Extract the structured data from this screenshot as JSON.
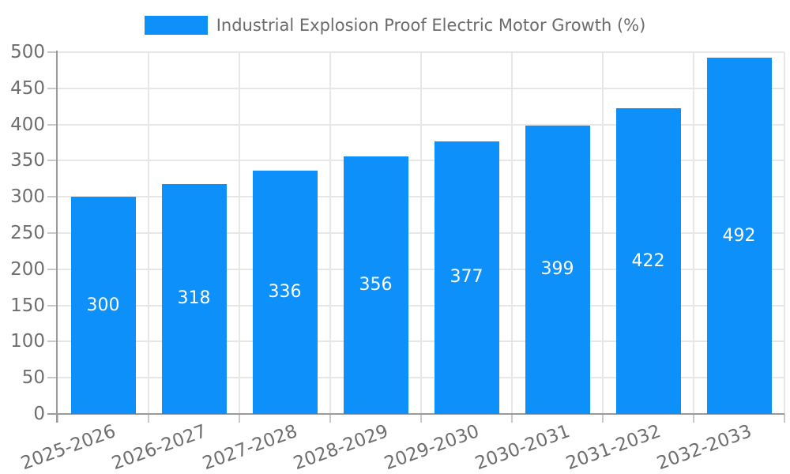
{
  "legend": {
    "label": "Industrial Explosion Proof Electric Motor Growth (%)"
  },
  "colors": {
    "bar": "#0e90fa",
    "bar_value_text": "#ffffff",
    "grid": "#e7e7e7",
    "axis": "#9a9a9a",
    "tick_text": "#6e6e6e",
    "legend_text": "#6b6b6b"
  },
  "chart_data": {
    "type": "bar",
    "title": "Industrial Explosion Proof Electric Motor Growth (%)",
    "categories": [
      "2025-2026",
      "2026-2027",
      "2027-2028",
      "2028-2029",
      "2029-2030",
      "2030-2031",
      "2031-2032",
      "2032-2033"
    ],
    "values": [
      300,
      318,
      336,
      356,
      377,
      399,
      422,
      492
    ],
    "xlabel": "",
    "ylabel": "",
    "ylim": [
      0,
      500
    ],
    "ytick_step": 50,
    "yticks": [
      0,
      50,
      100,
      150,
      200,
      250,
      300,
      350,
      400,
      450,
      500
    ],
    "grid": true,
    "legend_position": "top",
    "value_labels": "inside-center"
  }
}
